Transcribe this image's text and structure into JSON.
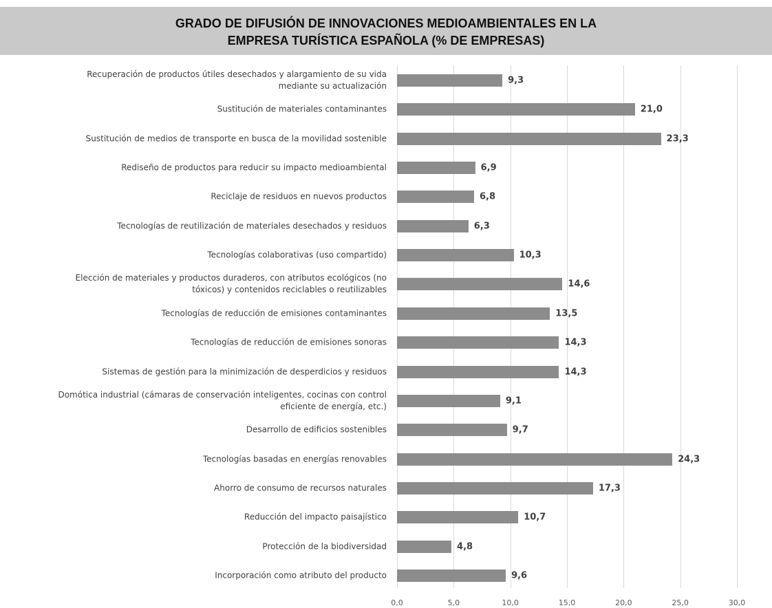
{
  "chart_data": {
    "type": "bar",
    "orientation": "horizontal",
    "title": "GRADO DE DIFUSIÓN DE INNOVACIONES MEDIOAMBIENTALES EN LA EMPRESA TURÍSTICA ESPAÑOLA (% DE EMPRESAS)",
    "categories": [
      "Recuperación de productos útiles desechados y alargamiento de su vida mediante su actualización",
      "Sustitución de materiales contaminantes",
      "Sustitución de medios de transporte en busca de la movilidad sostenible",
      "Rediseño de productos para reducir su impacto medioambiental",
      "Reciclaje de residuos en nuevos productos",
      "Tecnologías de reutilización de materiales desechados y residuos",
      "Tecnologías colaborativas (uso compartido)",
      "Elección de materiales y productos duraderos, con atributos ecológicos (no tóxicos) y contenidos reciclables o reutilizables",
      "Tecnologías de reducción de emisiones contaminantes",
      "Tecnologías de reducción de emisiones sonoras",
      "Sistemas de gestión para la minimización de desperdicios y residuos",
      "Domótica industrial (cámaras de conservación inteligentes, cocinas con control eficiente de energía, etc.)",
      "Desarrollo de edificios sostenibles",
      "Tecnologías basadas en energías renovables",
      "Ahorro de consumo de recursos naturales",
      "Reducción del impacto paisajístico",
      "Protección de la biodiversidad",
      "Incorporación como atributo del producto"
    ],
    "values": [
      9.3,
      21.0,
      23.3,
      6.9,
      6.8,
      6.3,
      10.3,
      14.6,
      13.5,
      14.3,
      14.3,
      9.1,
      9.7,
      24.3,
      17.3,
      10.7,
      4.8,
      9.6
    ],
    "value_labels": [
      "9,3",
      "21,0",
      "23,3",
      "6,9",
      "6,8",
      "6,3",
      "10,3",
      "14,6",
      "13,5",
      "14,3",
      "14,3",
      "9,1",
      "9,7",
      "24,3",
      "17,3",
      "10,7",
      "4,8",
      "9,6"
    ],
    "color": "#8c8c8c",
    "xlim": [
      0,
      30
    ],
    "xticks": [
      {
        "value": 0,
        "label": "0,0"
      },
      {
        "value": 5,
        "label": "5,0"
      },
      {
        "value": 10,
        "label": "10,0"
      },
      {
        "value": 15,
        "label": "15,0"
      },
      {
        "value": 20,
        "label": "20,0"
      },
      {
        "value": 25,
        "label": "25,0"
      },
      {
        "value": 30,
        "label": "30,0"
      }
    ],
    "grid": true
  }
}
